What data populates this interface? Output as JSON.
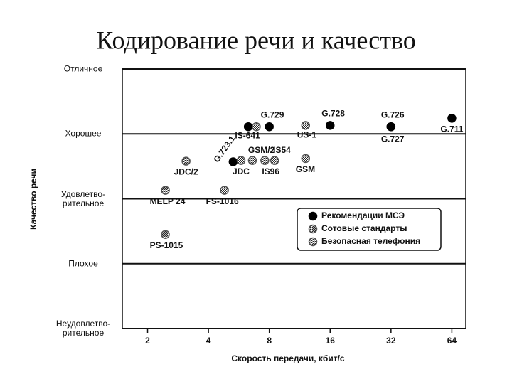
{
  "chart_data": {
    "type": "scatter",
    "title": "Кодирование речи и качество",
    "xlabel": "Скорость передачи, кбит/с",
    "ylabel": "Качество речи",
    "xscale": "log2",
    "xlim": [
      1.5,
      75
    ],
    "xticks": [
      2,
      4,
      8,
      16,
      32,
      64
    ],
    "ylim": [
      1,
      5
    ],
    "yticks": [
      {
        "value": 5,
        "label": "Отличное"
      },
      {
        "value": 4,
        "label": "Хорошее"
      },
      {
        "value": 3,
        "label": "Удовлетво-\nрительное"
      },
      {
        "value": 2,
        "label": "Плохое"
      },
      {
        "value": 1,
        "label": "Неудовлетво-\nрительное"
      }
    ],
    "grid": true,
    "legend": "lower right",
    "series": [
      {
        "name": "Рекомендации МСЭ",
        "marker": "solid",
        "color": "#000000",
        "x": [
          8,
          16,
          32,
          32,
          64,
          5.3,
          6.3
        ],
        "values": [
          4.11,
          4.13,
          4.11,
          4.11,
          4.24,
          3.57,
          4.11
        ],
        "labels": [
          "G.729",
          "G.728",
          "G.726",
          "G.727",
          "G.711",
          "G.723.1",
          null
        ]
      },
      {
        "name": "Сотовые стандарты",
        "marker": "hatched",
        "color": "#555555",
        "x": [
          6.9,
          12.1,
          5.8,
          6.6,
          7.6,
          8.5,
          12.1,
          3.1
        ],
        "values": [
          4.11,
          4.13,
          3.59,
          3.59,
          3.59,
          3.59,
          3.62,
          3.58
        ],
        "labels": [
          "IS-641",
          "US-1",
          "JDC",
          "GSM/2",
          "IS96",
          "IS54",
          "GSM",
          "JDC/2"
        ]
      },
      {
        "name": "Безопасная телефония",
        "marker": "hatched",
        "color": "#555555",
        "x": [
          2.45,
          4.8,
          2.45
        ],
        "values": [
          3.13,
          3.13,
          2.45
        ],
        "labels": [
          "MELP 24",
          "FS-1016",
          "PS-1015"
        ]
      }
    ]
  }
}
